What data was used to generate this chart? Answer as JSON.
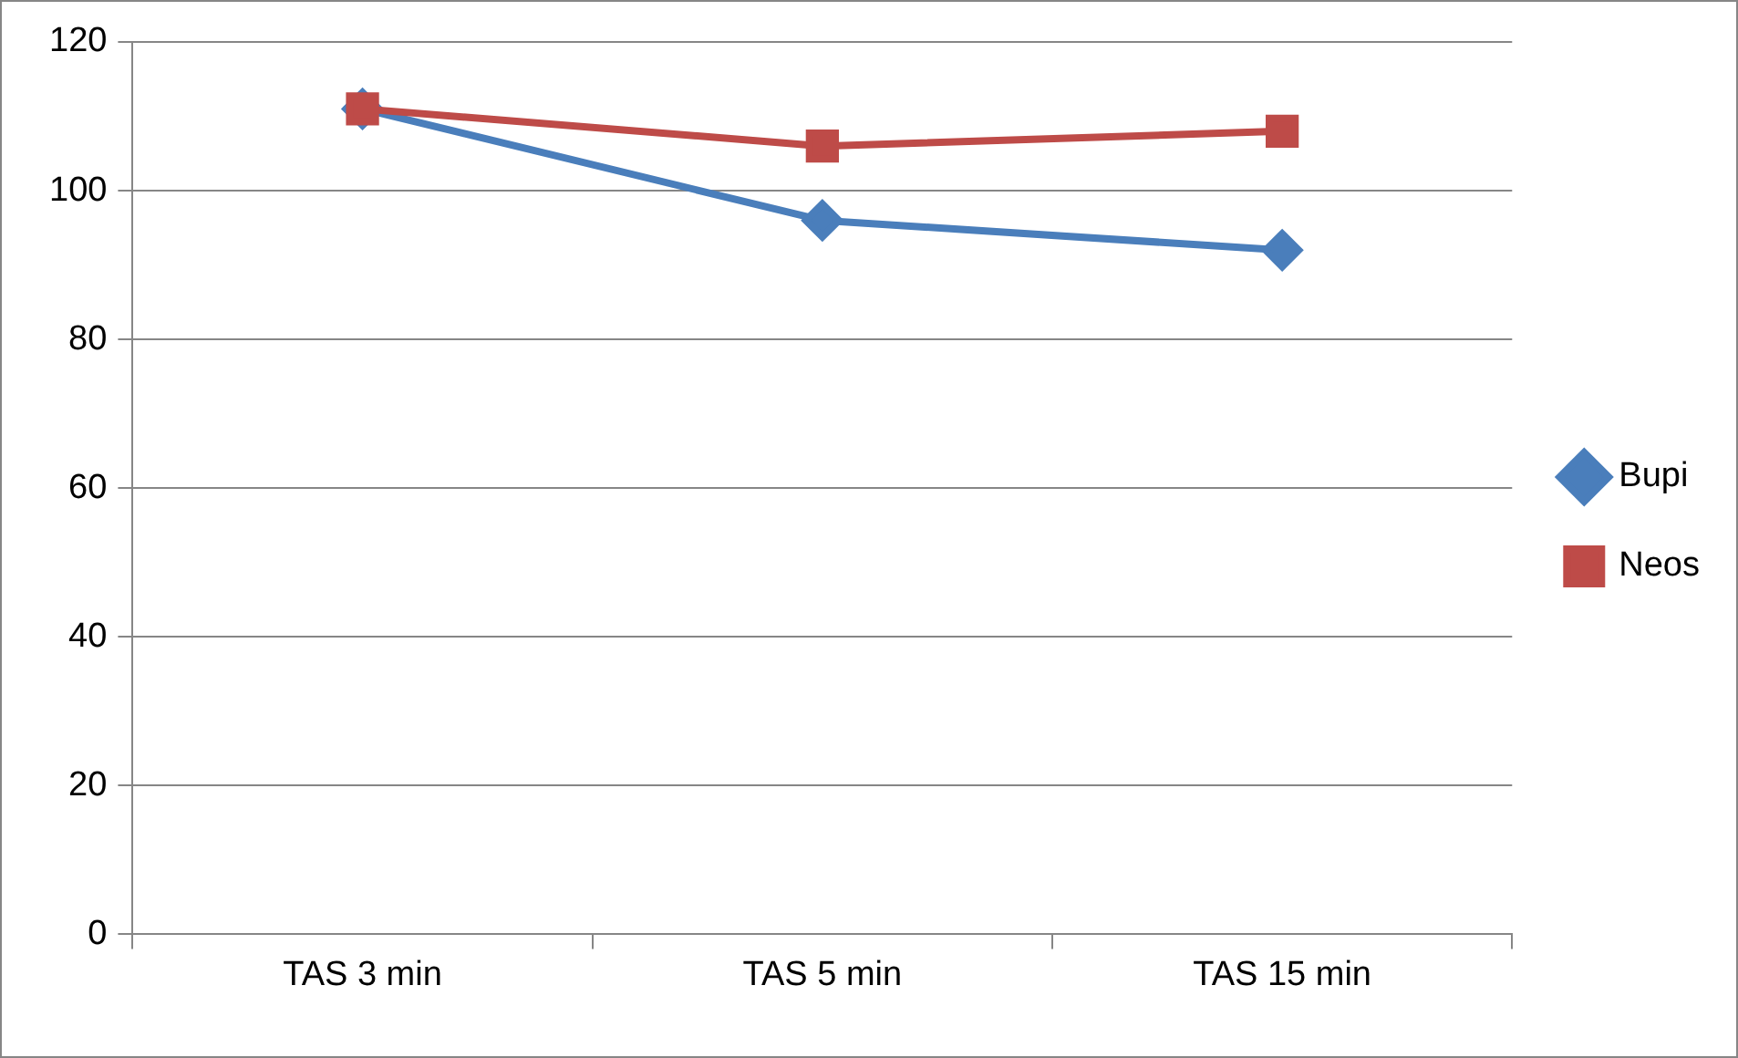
{
  "chart_data": {
    "type": "line",
    "categories": [
      "TAS 3 min",
      "TAS 5 min",
      "TAS 15 min"
    ],
    "series": [
      {
        "name": "Bupi",
        "color": "#4a7ebb",
        "marker": "diamond",
        "values": [
          111,
          96,
          92
        ]
      },
      {
        "name": "Neos",
        "color": "#be4b48",
        "marker": "square",
        "values": [
          111,
          106,
          108
        ]
      }
    ],
    "ylim": [
      0,
      120
    ],
    "yticks": [
      0,
      20,
      40,
      60,
      80,
      100,
      120
    ],
    "grid": "y",
    "legend": "right",
    "line_style": "solid"
  }
}
